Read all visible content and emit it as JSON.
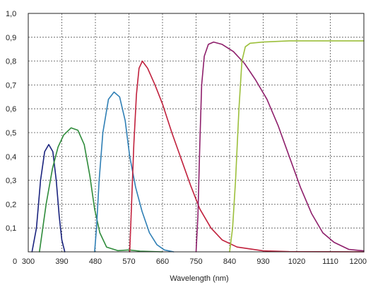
{
  "chart_data": {
    "type": "line",
    "xlabel": "Wavelength (nm)",
    "ylabel": "",
    "title": "",
    "xlim": [
      300,
      1200
    ],
    "ylim": [
      0,
      1.0
    ],
    "x_ticks": [
      300,
      390,
      480,
      570,
      660,
      750,
      840,
      930,
      1020,
      1110,
      1200
    ],
    "y_ticks": [
      0,
      0.1,
      0.2,
      0.3,
      0.4,
      0.5,
      0.6,
      0.7,
      0.8,
      0.9,
      1.0
    ],
    "x_tick_labels": [
      "300",
      "390",
      "480",
      "570",
      "660",
      "750",
      "840",
      "930",
      "1020",
      "1110",
      "1200"
    ],
    "y_tick_labels": [
      "0",
      "0,1",
      "0,2",
      "0,3",
      "0,4",
      "0,5",
      "0,6",
      "0,7",
      "0,8",
      "0,9",
      "1,0"
    ],
    "grid": true,
    "legend": "none",
    "series": [
      {
        "color": "#1a237e",
        "points": [
          [
            310,
            0
          ],
          [
            322,
            0.1
          ],
          [
            333,
            0.3
          ],
          [
            344,
            0.42
          ],
          [
            355,
            0.45
          ],
          [
            366,
            0.42
          ],
          [
            375,
            0.3
          ],
          [
            383,
            0.15
          ],
          [
            390,
            0.05
          ],
          [
            398,
            0
          ]
        ]
      },
      {
        "color": "#2e8b3a",
        "points": [
          [
            330,
            0
          ],
          [
            348,
            0.2
          ],
          [
            365,
            0.35
          ],
          [
            380,
            0.44
          ],
          [
            395,
            0.49
          ],
          [
            415,
            0.52
          ],
          [
            433,
            0.51
          ],
          [
            450,
            0.45
          ],
          [
            465,
            0.32
          ],
          [
            478,
            0.18
          ],
          [
            492,
            0.08
          ],
          [
            510,
            0.02
          ],
          [
            540,
            0.005
          ],
          [
            570,
            0.008
          ],
          [
            600,
            0.003
          ],
          [
            660,
            0
          ]
        ]
      },
      {
        "color": "#2f7fb5",
        "points": [
          [
            478,
            0
          ],
          [
            483,
            0.1
          ],
          [
            490,
            0.3
          ],
          [
            500,
            0.5
          ],
          [
            515,
            0.64
          ],
          [
            530,
            0.67
          ],
          [
            545,
            0.65
          ],
          [
            560,
            0.55
          ],
          [
            572,
            0.4
          ],
          [
            588,
            0.27
          ],
          [
            605,
            0.17
          ],
          [
            625,
            0.08
          ],
          [
            645,
            0.03
          ],
          [
            665,
            0.008
          ],
          [
            690,
            0
          ]
        ]
      },
      {
        "color": "#c0203c",
        "points": [
          [
            572,
            0
          ],
          [
            577,
            0.2
          ],
          [
            583,
            0.45
          ],
          [
            590,
            0.66
          ],
          [
            597,
            0.77
          ],
          [
            606,
            0.8
          ],
          [
            620,
            0.77
          ],
          [
            640,
            0.7
          ],
          [
            660,
            0.62
          ],
          [
            685,
            0.5
          ],
          [
            710,
            0.39
          ],
          [
            735,
            0.28
          ],
          [
            760,
            0.18
          ],
          [
            790,
            0.1
          ],
          [
            820,
            0.05
          ],
          [
            860,
            0.02
          ],
          [
            930,
            0.004
          ],
          [
            1000,
            0.001
          ],
          [
            1200,
            0
          ]
        ]
      },
      {
        "color": "#8e1f6b",
        "points": [
          [
            750,
            0
          ],
          [
            755,
            0.15
          ],
          [
            760,
            0.45
          ],
          [
            765,
            0.7
          ],
          [
            772,
            0.82
          ],
          [
            783,
            0.87
          ],
          [
            797,
            0.88
          ],
          [
            820,
            0.87
          ],
          [
            850,
            0.84
          ],
          [
            880,
            0.79
          ],
          [
            910,
            0.72
          ],
          [
            940,
            0.64
          ],
          [
            970,
            0.53
          ],
          [
            1000,
            0.4
          ],
          [
            1030,
            0.27
          ],
          [
            1060,
            0.16
          ],
          [
            1090,
            0.08
          ],
          [
            1120,
            0.04
          ],
          [
            1160,
            0.01
          ],
          [
            1200,
            0.004
          ]
        ]
      },
      {
        "color": "#9cbf3b",
        "points": [
          [
            840,
            0
          ],
          [
            848,
            0.1
          ],
          [
            856,
            0.3
          ],
          [
            865,
            0.6
          ],
          [
            873,
            0.8
          ],
          [
            882,
            0.86
          ],
          [
            895,
            0.875
          ],
          [
            930,
            0.88
          ],
          [
            1000,
            0.885
          ],
          [
            1110,
            0.885
          ],
          [
            1200,
            0.885
          ]
        ]
      }
    ]
  }
}
